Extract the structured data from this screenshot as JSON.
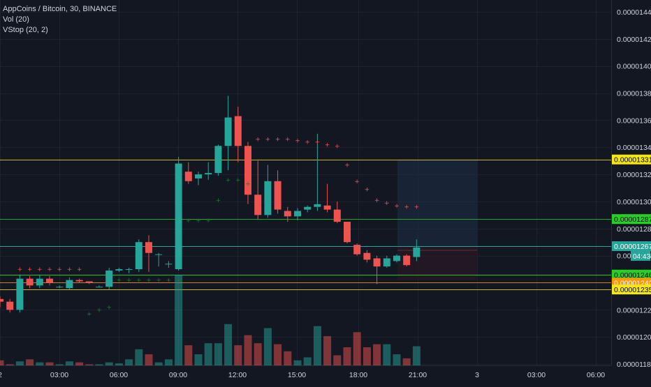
{
  "legend": {
    "symbol_line": "AppCoins / Bitcoin, 30, BINANCE",
    "vol_line": "Vol (20)",
    "vstop_line": "VStop (20, 2)"
  },
  "price_axis": {
    "labels": [
      "0.00001440",
      "0.00001420",
      "0.00001400",
      "0.00001380",
      "0.00001360",
      "0.00001340",
      "0.00001320",
      "0.00001300",
      "0.00001280",
      "0.00001260",
      "0.00001240",
      "0.00001220",
      "0.00001200",
      "0.00001180"
    ]
  },
  "time_axis": {
    "labels": [
      "2",
      "03:00",
      "06:00",
      "09:00",
      "12:00",
      "15:00",
      "18:00",
      "21:00",
      "3",
      "03:00",
      "06:00"
    ]
  },
  "price_tags": [
    {
      "text": "0.00001331",
      "price": 1.331e-05,
      "bg": "#f5e614",
      "fg": "#000000",
      "line": "#c8b819"
    },
    {
      "text": "0.00001287",
      "price": 1.287e-05,
      "bg": "#22d322",
      "fg": "#000000",
      "line": "#22a822"
    },
    {
      "text": "0.00001267",
      "price": 1.267e-05,
      "bg": "#26a69a",
      "fg": "#ffffff",
      "line": "#26a69a"
    },
    {
      "text": "0.00001246",
      "price": 1.246e-05,
      "bg": "#22d322",
      "fg": "#000000",
      "line": "#22c822"
    },
    {
      "text": "0.00001240",
      "price": 1.24e-05,
      "bg": "#ff9800",
      "fg": "#ffffff",
      "line": "#d68010"
    },
    {
      "text": "0.00001235",
      "price": 1.235e-05,
      "bg": "#f5e614",
      "fg": "#000000",
      "line": "#c8b819"
    }
  ],
  "countdown": "04:43",
  "colors": {
    "up": "#26a69a",
    "down": "#ef5350",
    "background": "#131722",
    "grid": "#1e222d",
    "axis_text": "#d1d4dc",
    "vstop_down": "#ef5350",
    "vstop_up": "#1b7a2d"
  },
  "chart_data": {
    "type": "candlestick",
    "ylim": [
      1.175e-05,
      1.447e-05
    ],
    "candles": [
      {
        "o": 1.228e-05,
        "h": 1.23e-05,
        "l": 1.222e-05,
        "c": 1.226e-05
      },
      {
        "o": 1.226e-05,
        "h": 1.228e-05,
        "l": 1.218e-05,
        "c": 1.22e-05
      },
      {
        "o": 1.22e-05,
        "h": 1.246e-05,
        "l": 1.218e-05,
        "c": 1.243e-05
      },
      {
        "o": 1.243e-05,
        "h": 1.245e-05,
        "l": 1.236e-05,
        "c": 1.238e-05
      },
      {
        "o": 1.238e-05,
        "h": 1.246e-05,
        "l": 1.236e-05,
        "c": 1.243e-05
      },
      {
        "o": 1.243e-05,
        "h": 1.245e-05,
        "l": 1.238e-05,
        "c": 1.24e-05
      },
      {
        "o": 1.237e-05,
        "h": 1.238e-05,
        "l": 1.236e-05,
        "c": 1.237e-05
      },
      {
        "o": 1.236e-05,
        "h": 1.244e-05,
        "l": 1.235e-05,
        "c": 1.242e-05
      },
      {
        "o": 1.242e-05,
        "h": 1.243e-05,
        "l": 1.24e-05,
        "c": 1.241e-05
      },
      {
        "o": 1.241e-05,
        "h": 1.241e-05,
        "l": 1.239e-05,
        "c": 1.24e-05
      },
      {
        "o": 1.237e-05,
        "h": 1.238e-05,
        "l": 1.237e-05,
        "c": 1.237e-05
      },
      {
        "o": 1.237e-05,
        "h": 1.251e-05,
        "l": 1.235e-05,
        "c": 1.249e-05
      },
      {
        "o": 1.249e-05,
        "h": 1.251e-05,
        "l": 1.248e-05,
        "c": 1.25e-05
      },
      {
        "o": 1.25e-05,
        "h": 1.251e-05,
        "l": 1.247e-05,
        "c": 1.25e-05
      },
      {
        "o": 1.25e-05,
        "h": 1.272e-05,
        "l": 1.248e-05,
        "c": 1.27e-05
      },
      {
        "o": 1.27e-05,
        "h": 1.275e-05,
        "l": 1.248e-05,
        "c": 1.262e-05
      },
      {
        "o": 1.261e-05,
        "h": 1.262e-05,
        "l": 1.252e-05,
        "c": 1.261e-05
      },
      {
        "o": 1.254e-05,
        "h": 1.256e-05,
        "l": 1.251e-05,
        "c": 1.254e-05
      },
      {
        "o": 1.25e-05,
        "h": 1.333e-05,
        "l": 1.249e-05,
        "c": 1.328e-05
      },
      {
        "o": 1.322e-05,
        "h": 1.329e-05,
        "l": 1.313e-05,
        "c": 1.315e-05
      },
      {
        "o": 1.317e-05,
        "h": 1.322e-05,
        "l": 1.312e-05,
        "c": 1.32e-05
      },
      {
        "o": 1.32e-05,
        "h": 1.329e-05,
        "l": 1.316e-05,
        "c": 1.321e-05
      },
      {
        "o": 1.321e-05,
        "h": 1.342e-05,
        "l": 1.319e-05,
        "c": 1.341e-05
      },
      {
        "o": 1.341e-05,
        "h": 1.378e-05,
        "l": 1.323e-05,
        "c": 1.362e-05
      },
      {
        "o": 1.363e-05,
        "h": 1.37e-05,
        "l": 1.329e-05,
        "c": 1.341e-05
      },
      {
        "o": 1.341e-05,
        "h": 1.344e-05,
        "l": 1.298e-05,
        "c": 1.305e-05
      },
      {
        "o": 1.305e-05,
        "h": 1.33e-05,
        "l": 1.287e-05,
        "c": 1.29e-05
      },
      {
        "o": 1.29e-05,
        "h": 1.327e-05,
        "l": 1.288e-05,
        "c": 1.315e-05
      },
      {
        "o": 1.315e-05,
        "h": 1.323e-05,
        "l": 1.291e-05,
        "c": 1.294e-05
      },
      {
        "o": 1.293e-05,
        "h": 1.296e-05,
        "l": 1.285e-05,
        "c": 1.289e-05
      },
      {
        "o": 1.289e-05,
        "h": 1.295e-05,
        "l": 1.286e-05,
        "c": 1.293e-05
      },
      {
        "o": 1.294e-05,
        "h": 1.297e-05,
        "l": 1.292e-05,
        "c": 1.296e-05
      },
      {
        "o": 1.296e-05,
        "h": 1.35e-05,
        "l": 1.293e-05,
        "c": 1.298e-05
      },
      {
        "o": 1.297e-05,
        "h": 1.313e-05,
        "l": 1.292e-05,
        "c": 1.294e-05
      },
      {
        "o": 1.294e-05,
        "h": 1.3e-05,
        "l": 1.284e-05,
        "c": 1.285e-05
      },
      {
        "o": 1.285e-05,
        "h": 1.285e-05,
        "l": 1.269e-05,
        "c": 1.27e-05
      },
      {
        "o": 1.268e-05,
        "h": 1.269e-05,
        "l": 1.26e-05,
        "c": 1.261e-05
      },
      {
        "o": 1.262e-05,
        "h": 1.264e-05,
        "l": 1.255e-05,
        "c": 1.257e-05
      },
      {
        "o": 1.258e-05,
        "h": 1.26e-05,
        "l": 1.239e-05,
        "c": 1.252e-05
      },
      {
        "o": 1.252e-05,
        "h": 1.26e-05,
        "l": 1.251e-05,
        "c": 1.258e-05
      },
      {
        "o": 1.256e-05,
        "h": 1.261e-05,
        "l": 1.255e-05,
        "c": 1.26e-05
      },
      {
        "o": 1.26e-05,
        "h": 1.261e-05,
        "l": 1.252e-05,
        "c": 1.253e-05
      },
      {
        "o": 1.259e-05,
        "h": 1.272e-05,
        "l": 1.256e-05,
        "c": 1.266e-05
      }
    ],
    "volume": [
      0.5,
      0.1,
      0.4,
      0.6,
      0.3,
      0.3,
      0.1,
      0.4,
      0.3,
      0.1,
      0.1,
      0.3,
      0.2,
      0.6,
      1.6,
      1.1,
      0.3,
      0.6,
      9.0,
      2.0,
      1.1,
      2.2,
      2.2,
      4.1,
      2.0,
      3.0,
      2.2,
      3.7,
      2.1,
      1.4,
      0.5,
      0.8,
      3.9,
      2.9,
      1.0,
      1.8,
      3.3,
      1.8,
      2.1,
      2.1,
      1.1,
      0.7,
      1.9
    ],
    "vstop": [
      null,
      null,
      {
        "v": 1.25e-05,
        "side": "down"
      },
      {
        "v": 1.25e-05,
        "side": "down"
      },
      {
        "v": 1.25e-05,
        "side": "down"
      },
      {
        "v": 1.25e-05,
        "side": "down"
      },
      {
        "v": 1.25e-05,
        "side": "down"
      },
      {
        "v": 1.25e-05,
        "side": "down"
      },
      {
        "v": 1.25e-05,
        "side": "down"
      },
      {
        "v": 1.217e-05,
        "side": "up"
      },
      {
        "v": 1.22e-05,
        "side": "up"
      },
      {
        "v": 1.222e-05,
        "side": "up"
      },
      {
        "v": 1.242e-05,
        "side": "up"
      },
      {
        "v": 1.242e-05,
        "side": "up"
      },
      {
        "v": 1.242e-05,
        "side": "up"
      },
      {
        "v": 1.242e-05,
        "side": "up"
      },
      {
        "v": 1.242e-05,
        "side": "up"
      },
      {
        "v": 1.242e-05,
        "side": "up"
      },
      {
        "v": 1.242e-05,
        "side": "up"
      },
      {
        "v": 1.286e-05,
        "side": "up"
      },
      {
        "v": 1.286e-05,
        "side": "up"
      },
      {
        "v": 1.286e-05,
        "side": "up"
      },
      {
        "v": 1.301e-05,
        "side": "up"
      },
      {
        "v": 1.316e-05,
        "side": "up"
      },
      {
        "v": 1.316e-05,
        "side": "up"
      },
      {
        "v": 1.313e-05,
        "side": "up"
      },
      {
        "v": 1.346e-05,
        "side": "down"
      },
      {
        "v": 1.346e-05,
        "side": "down"
      },
      {
        "v": 1.346e-05,
        "side": "down"
      },
      {
        "v": 1.346e-05,
        "side": "down"
      },
      {
        "v": 1.345e-05,
        "side": "down"
      },
      {
        "v": 1.344e-05,
        "side": "down"
      },
      {
        "v": 1.344e-05,
        "side": "down"
      },
      {
        "v": 1.342e-05,
        "side": "down"
      },
      {
        "v": 1.341e-05,
        "side": "down"
      },
      {
        "v": 1.327e-05,
        "side": "down"
      },
      {
        "v": 1.315e-05,
        "side": "down"
      },
      {
        "v": 1.309e-05,
        "side": "down"
      },
      {
        "v": 1.301e-05,
        "side": "down"
      },
      {
        "v": 1.299e-05,
        "side": "down"
      },
      {
        "v": 1.297e-05,
        "side": "down"
      },
      {
        "v": 1.296e-05,
        "side": "down"
      },
      {
        "v": 1.296e-05,
        "side": "down"
      }
    ]
  }
}
